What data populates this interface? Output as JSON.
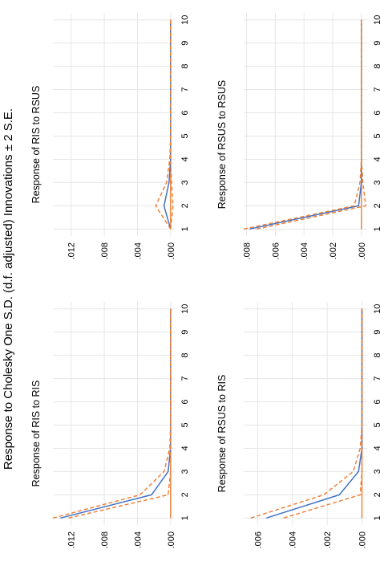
{
  "title": "Response to Cholesky One S.D. (d.f. adjusted) Innovations ± 2 S.E.",
  "colors": {
    "response": "#4472c4",
    "bands": "#ed7d31",
    "zero": "#ed7d31",
    "grid": "#e6e6e6"
  },
  "chart_data": [
    {
      "type": "line",
      "title": "Response of RIS to RIS",
      "x": [
        1,
        2,
        3,
        4,
        5,
        6,
        7,
        8,
        9,
        10
      ],
      "yticks": [
        ".000",
        ".004",
        ".008",
        ".012"
      ],
      "ylim": [
        -0.0005,
        0.0142
      ],
      "series": [
        {
          "role": "response",
          "values": [
            0.0133,
            0.0023,
            0.0003,
            0,
            0,
            0,
            0,
            0,
            0,
            0
          ]
        },
        {
          "role": "upper",
          "values": [
            0.0142,
            0.0037,
            0.0008,
            0.0001,
            0,
            0,
            0,
            0,
            0,
            0
          ]
        },
        {
          "role": "lower",
          "values": [
            0.0123,
            0.0003,
            0,
            0,
            0,
            0,
            0,
            0,
            0,
            0
          ]
        }
      ]
    },
    {
      "type": "line",
      "title": "Response of RIS to RSUS",
      "x": [
        1,
        2,
        3,
        4,
        5,
        6,
        7,
        8,
        9,
        10
      ],
      "yticks": [
        ".000",
        ".004",
        ".008",
        ".012"
      ],
      "ylim": [
        -0.0005,
        0.0142
      ],
      "series": [
        {
          "role": "response",
          "values": [
            0,
            0.0008,
            0.0002,
            0,
            0,
            0,
            0,
            0,
            0,
            0
          ]
        },
        {
          "role": "upper",
          "values": [
            0,
            0.0018,
            0.0005,
            0.0001,
            0,
            0,
            0,
            0,
            0,
            0
          ]
        },
        {
          "role": "lower",
          "values": [
            0,
            -0.0003,
            -0.0001,
            0,
            0,
            0,
            0,
            0,
            0,
            0
          ]
        }
      ]
    },
    {
      "type": "line",
      "title": "Response of RSUS to RIS",
      "x": [
        1,
        2,
        3,
        4,
        5,
        6,
        7,
        8,
        9,
        10
      ],
      "yticks": [
        ".000",
        ".002",
        ".004",
        ".006"
      ],
      "ylim": [
        -0.0003,
        0.0068
      ],
      "series": [
        {
          "role": "response",
          "values": [
            0.0055,
            0.0013,
            0.0002,
            0,
            0,
            0,
            0,
            0,
            0,
            0
          ]
        },
        {
          "role": "upper",
          "values": [
            0.0064,
            0.0022,
            0.0005,
            0.0001,
            0,
            0,
            0,
            0,
            0,
            0
          ]
        },
        {
          "role": "lower",
          "values": [
            0.0045,
            0.0001,
            0,
            0,
            0,
            0,
            0,
            0,
            0,
            0
          ]
        }
      ]
    },
    {
      "type": "line",
      "title": "Response of RSUS to RSUS",
      "x": [
        1,
        2,
        3,
        4,
        5,
        6,
        7,
        8,
        9,
        10
      ],
      "yticks": [
        ".000",
        ".002",
        ".004",
        ".006",
        ".008"
      ],
      "ylim": [
        -0.0004,
        0.0082
      ],
      "series": [
        {
          "role": "response",
          "values": [
            0.0078,
            0.0002,
            0,
            0,
            0,
            0,
            0,
            0,
            0,
            0
          ]
        },
        {
          "role": "upper",
          "values": [
            0.0082,
            0.0005,
            0.0001,
            0,
            0,
            0,
            0,
            0,
            0,
            0
          ]
        },
        {
          "role": "lower",
          "values": [
            0.0073,
            -0.0003,
            -0.0001,
            0,
            0,
            0,
            0,
            0,
            0,
            0
          ]
        }
      ]
    }
  ]
}
